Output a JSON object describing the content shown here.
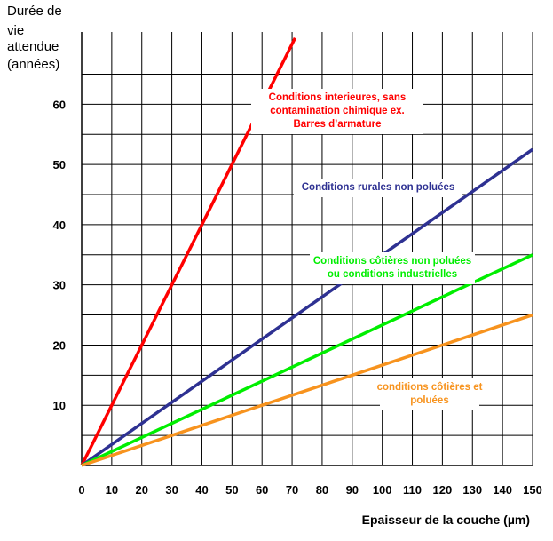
{
  "chart_data": {
    "type": "line",
    "title": "",
    "ylabel": [
      "Durée de",
      "vie",
      "attendue",
      "(années)"
    ],
    "xlabel": "Epaisseur de la couche (µm)",
    "xlim": [
      0,
      150
    ],
    "ylim": [
      0,
      72
    ],
    "x_ticks": [
      0,
      10,
      20,
      30,
      40,
      50,
      60,
      70,
      80,
      90,
      100,
      110,
      120,
      130,
      140,
      150
    ],
    "y_ticks": [
      10,
      20,
      30,
      40,
      50,
      60
    ],
    "grid": true,
    "series": [
      {
        "name": "Conditions interieures, sans contamination chimique ex. Barres d'armature",
        "label_lines": [
          "Conditions interieures, sans",
          "contamination chimique ex.",
          "Barres d’armature"
        ],
        "color": "#ff0000",
        "x": [
          0,
          71
        ],
        "y": [
          0,
          71
        ]
      },
      {
        "name": "Conditions rurales non poluées",
        "label_lines": [
          "Conditions rurales non poluées"
        ],
        "color": "#2e3192",
        "x": [
          0,
          150
        ],
        "y": [
          0,
          52.5
        ]
      },
      {
        "name": "Conditions côtières non poluées ou conditions industrielles",
        "label_lines": [
          "Conditions côtières non poluées",
          "ou conditions industrielles"
        ],
        "color": "#00ee00",
        "x": [
          0,
          150
        ],
        "y": [
          0,
          35
        ]
      },
      {
        "name": "conditions côtières et poluées",
        "label_lines": [
          "conditions côtières et",
          "poluées"
        ],
        "color": "#f7931e",
        "x": [
          0,
          150
        ],
        "y": [
          0,
          25
        ]
      }
    ]
  }
}
